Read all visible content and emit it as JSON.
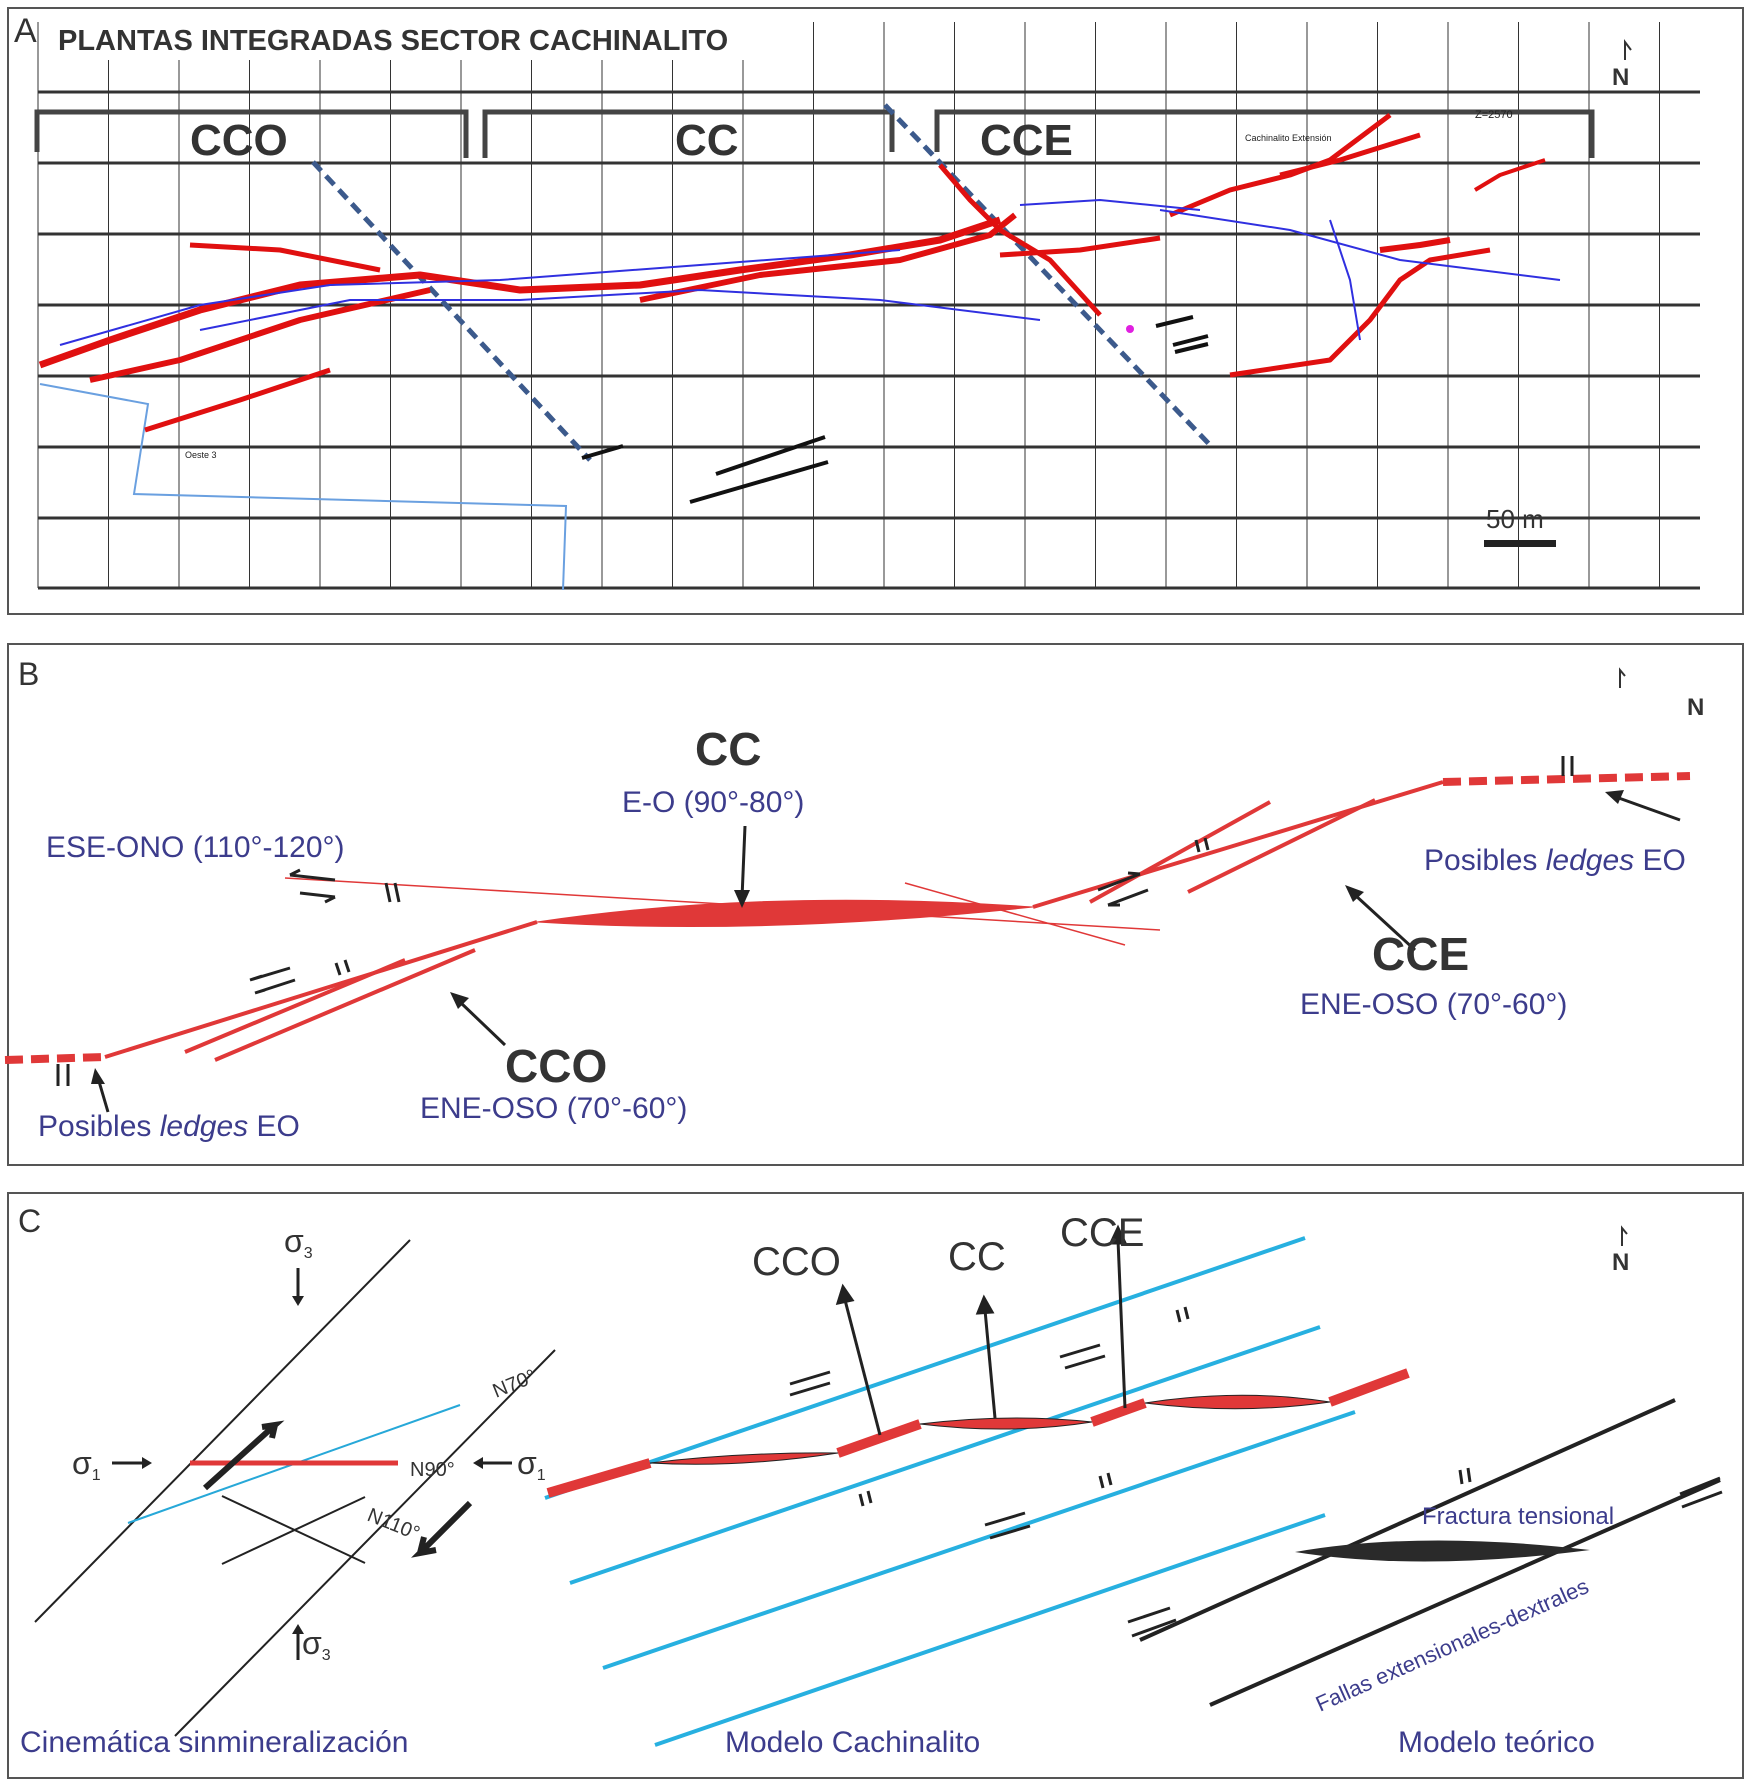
{
  "panel_a": {
    "letter": "A",
    "title": "PLANTAS INTEGRADAS SECTOR CACHINALITO",
    "sectors": [
      "CCO",
      "CC",
      "CCE"
    ],
    "level_label": "Z=2570",
    "area_label": "Cachinalito Extensión",
    "tunnel_label": "Oeste 3",
    "north": "N",
    "scale_label": "50 m"
  },
  "panel_b": {
    "letter": "B",
    "north": "N",
    "cc_label": "CC",
    "cc_orientation": "E-O (90°-80°)",
    "ese_orientation": "ESE-ONO (110°-120°)",
    "cce_label": "CCE",
    "cce_orientation": "ENE-OSO (70°-60°)",
    "cco_label": "CCO",
    "cco_orientation": "ENE-OSO (70°-60°)",
    "ledges_prefix": "Posibles ",
    "ledges_italic": "ledges",
    "ledges_suffix": " EO"
  },
  "panel_c": {
    "letter": "C",
    "north": "N",
    "sigma1": "σ",
    "sigma1_sub": "1",
    "sigma3": "σ",
    "sigma3_sub": "3",
    "n70": "N70°",
    "n90": "N90°",
    "n110": "N110°",
    "model_labels": [
      "CCO",
      "CC",
      "CCE"
    ],
    "fractura": "Fractura tensional",
    "fallas": "Fallas extensionales-dextrales",
    "captions": [
      "Cinemática sinmineralización",
      "Modelo Cachinalito",
      "Modelo teórico"
    ]
  }
}
